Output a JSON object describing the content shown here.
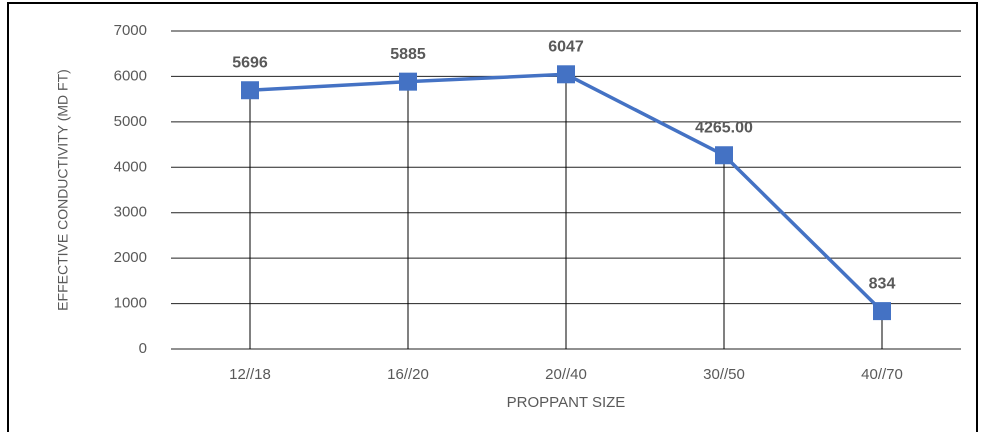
{
  "chart_data": {
    "type": "line",
    "y_label": "EFFECTIVE CONDUCTIVITY (MD FT)",
    "x_label": "PROPPANT SIZE",
    "categories": [
      "12//18",
      "16//20",
      "20//40",
      "30//50",
      "40//70"
    ],
    "values": [
      5696,
      5885,
      6047,
      4265,
      834
    ],
    "value_labels": [
      "5696",
      "5885",
      "6047",
      "4265.00",
      "834"
    ],
    "color": "#4472c4",
    "ylim": [
      0,
      7000
    ],
    "yticks": [
      0,
      1000,
      2000,
      3000,
      4000,
      5000,
      6000,
      7000
    ],
    "grid": true,
    "drop_lines": true
  }
}
